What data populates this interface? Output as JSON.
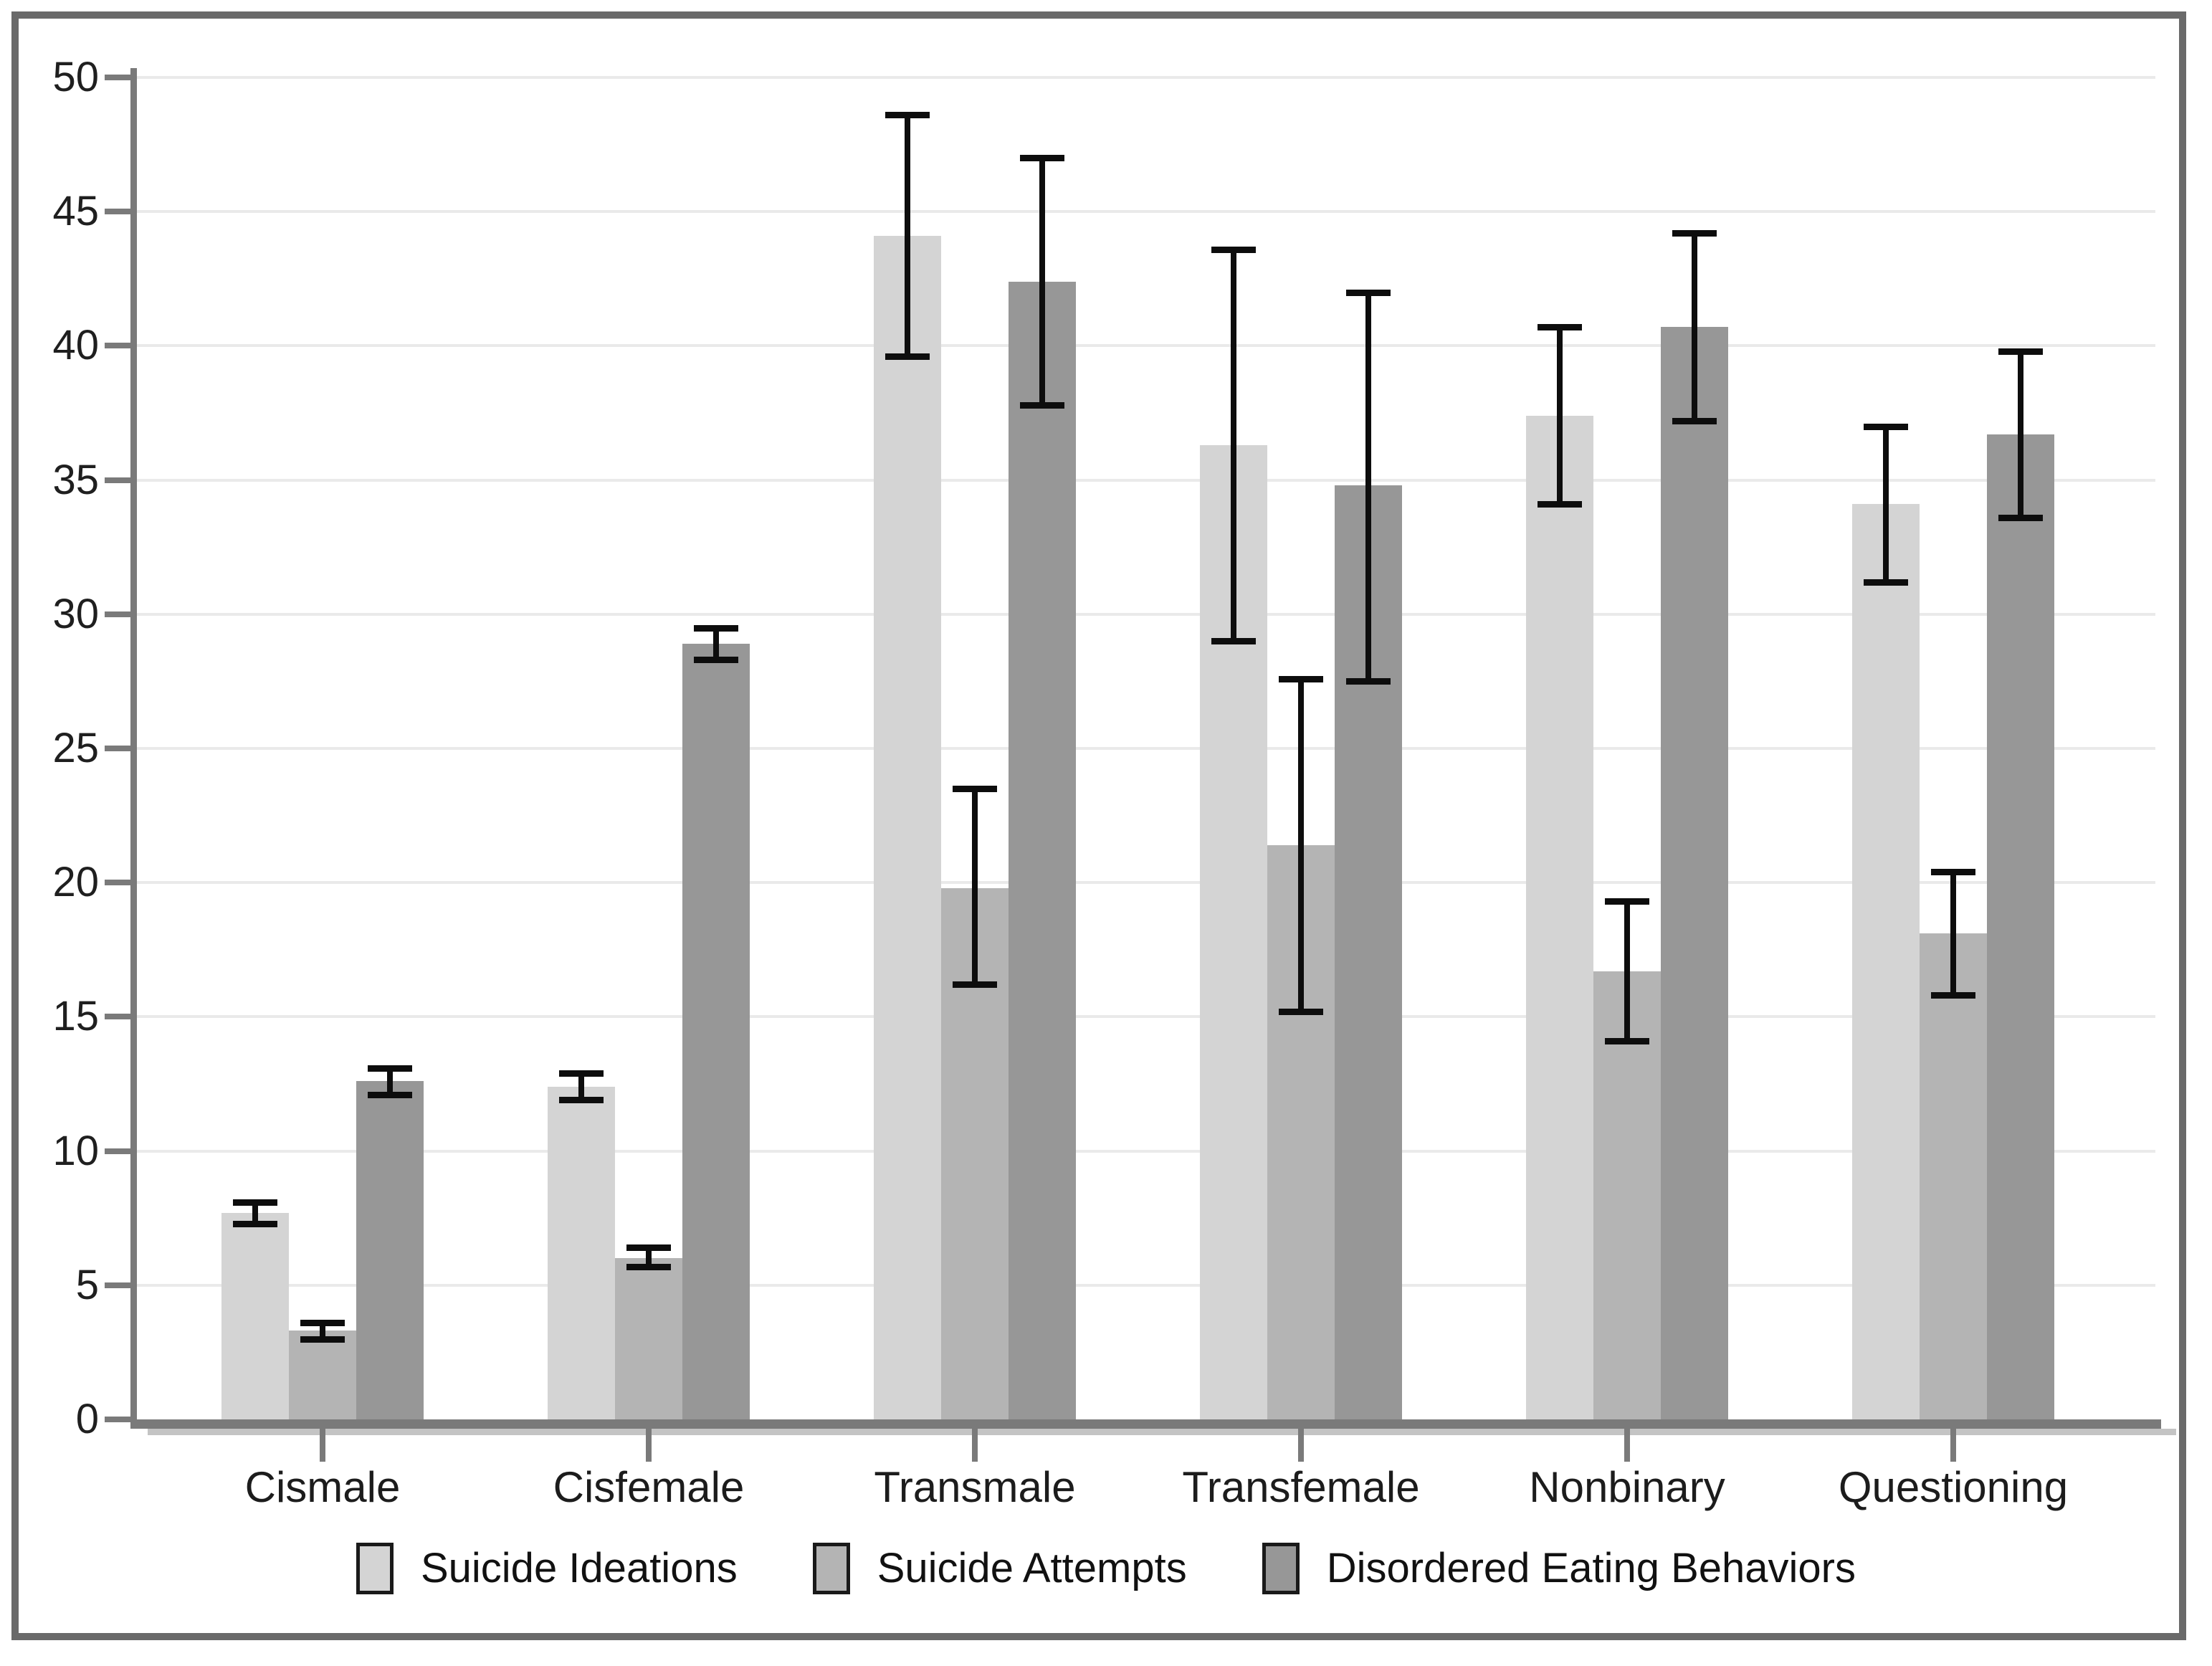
{
  "chart_data": {
    "type": "bar",
    "title": "",
    "xlabel": "",
    "ylabel": "",
    "ylim": [
      0,
      50
    ],
    "y_tick_step": 5,
    "y_ticks": [
      0,
      5,
      10,
      15,
      20,
      25,
      30,
      35,
      40,
      45,
      50
    ],
    "grid": "horizontal",
    "legend_position": "bottom",
    "error_bars": true,
    "categories": [
      "Cismale",
      "Cisfemale",
      "Transmale",
      "Transfemale",
      "Nonbinary",
      "Questioning"
    ],
    "series": [
      {
        "name": "Suicide Ideations",
        "color": "#d4d4d4",
        "values": [
          7.7,
          12.4,
          44.1,
          36.3,
          37.4,
          34.1
        ],
        "err_hi": [
          8.1,
          12.9,
          48.6,
          43.6,
          40.7,
          37.0
        ],
        "err_lo": [
          7.3,
          11.9,
          39.6,
          29.0,
          34.1,
          31.2
        ]
      },
      {
        "name": "Suicide Attempts",
        "color": "#b4b4b4",
        "values": [
          3.3,
          6.0,
          19.8,
          21.4,
          16.7,
          18.1
        ],
        "err_hi": [
          3.6,
          6.4,
          23.5,
          27.6,
          19.3,
          20.4
        ],
        "err_lo": [
          3.0,
          5.7,
          16.2,
          15.2,
          14.1,
          15.8
        ]
      },
      {
        "name": "Disordered Eating Behaviors",
        "color": "#979797",
        "values": [
          12.6,
          28.9,
          42.4,
          34.8,
          40.7,
          36.7
        ],
        "err_hi": [
          13.1,
          29.5,
          47.0,
          42.0,
          44.2,
          39.8
        ],
        "err_lo": [
          12.1,
          28.3,
          37.8,
          27.5,
          37.2,
          33.6
        ]
      }
    ],
    "colors": {
      "background": "#ffffff",
      "frame_border": "#6a6a6a",
      "axis": "#7a7a7a",
      "axis_shadow": "#c4c4c4",
      "gridline": "#eaeaea",
      "error_bar": "#0d0d0d",
      "text": "#1c1c1c"
    }
  }
}
